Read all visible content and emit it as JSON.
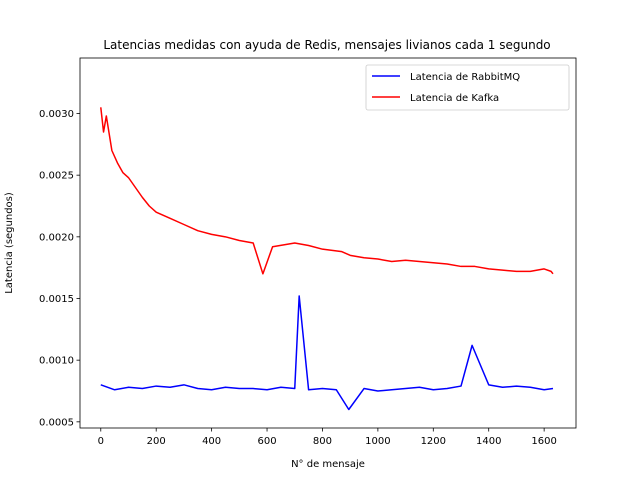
{
  "chart_data": {
    "type": "line",
    "title": "Latencias medidas con ayuda de Redis, mensajes livianos cada 1 segundo",
    "xlabel": "N° de mensaje",
    "ylabel": "Latencia (segundos)",
    "xlim": [
      -75,
      1715
    ],
    "ylim": [
      0.00045,
      0.00345
    ],
    "xticks": [
      0,
      200,
      400,
      600,
      800,
      1000,
      1200,
      1400,
      1600
    ],
    "xtick_labels": [
      "0",
      "200",
      "400",
      "600",
      "800",
      "1000",
      "1200",
      "1400",
      "1600"
    ],
    "yticks": [
      0.0005,
      0.001,
      0.0015,
      0.002,
      0.0025,
      0.003
    ],
    "ytick_labels": [
      "0.0005",
      "0.0010",
      "0.0015",
      "0.0020",
      "0.0025",
      "0.0030"
    ],
    "grid": false,
    "legend_position": "top-right",
    "series": [
      {
        "name": "Latencia de RabbitMQ",
        "color": "#0000ff",
        "x": [
          0,
          50,
          100,
          150,
          200,
          250,
          300,
          350,
          400,
          450,
          500,
          550,
          600,
          650,
          700,
          716,
          750,
          800,
          850,
          895,
          950,
          1000,
          1050,
          1100,
          1150,
          1200,
          1250,
          1300,
          1340,
          1400,
          1450,
          1500,
          1550,
          1600,
          1632
        ],
        "y": [
          0.0008,
          0.00076,
          0.00078,
          0.00077,
          0.00079,
          0.00078,
          0.0008,
          0.00077,
          0.00076,
          0.00078,
          0.00077,
          0.00077,
          0.00076,
          0.00078,
          0.00077,
          0.00152,
          0.00076,
          0.00077,
          0.00076,
          0.0006,
          0.00077,
          0.00075,
          0.00076,
          0.00077,
          0.00078,
          0.00076,
          0.00077,
          0.00079,
          0.00112,
          0.0008,
          0.00078,
          0.00079,
          0.00078,
          0.00076,
          0.00077
        ]
      },
      {
        "name": "Latencia de Kafka",
        "color": "#ff0000",
        "x": [
          0,
          10,
          20,
          40,
          60,
          80,
          100,
          125,
          150,
          175,
          200,
          250,
          300,
          350,
          400,
          450,
          500,
          550,
          585,
          620,
          700,
          750,
          800,
          870,
          900,
          950,
          1000,
          1050,
          1100,
          1150,
          1200,
          1250,
          1300,
          1350,
          1400,
          1450,
          1500,
          1550,
          1600,
          1625,
          1632
        ],
        "y": [
          0.00305,
          0.00285,
          0.00298,
          0.0027,
          0.0026,
          0.00252,
          0.00248,
          0.0024,
          0.00232,
          0.00225,
          0.0022,
          0.00215,
          0.0021,
          0.00205,
          0.00202,
          0.002,
          0.00197,
          0.00195,
          0.0017,
          0.00192,
          0.00195,
          0.00193,
          0.0019,
          0.00188,
          0.00185,
          0.00183,
          0.00182,
          0.0018,
          0.00181,
          0.0018,
          0.00179,
          0.00178,
          0.00176,
          0.00176,
          0.00174,
          0.00173,
          0.00172,
          0.00172,
          0.00174,
          0.00172,
          0.0017
        ]
      }
    ]
  }
}
